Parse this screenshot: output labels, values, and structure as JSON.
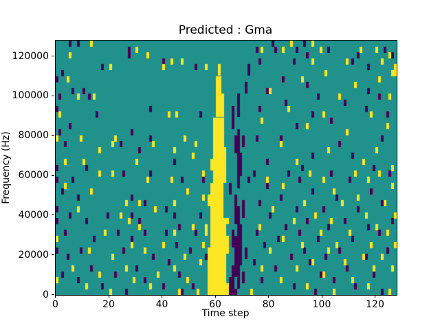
{
  "figure": {
    "background": "#ffffff"
  },
  "chart_data": {
    "type": "heatmap",
    "title": "Predicted : Gma",
    "xlabel": "Time step",
    "ylabel": "Frequency (Hz)",
    "x_ticks": [
      0,
      20,
      40,
      60,
      80,
      100,
      120
    ],
    "y_ticks": [
      0,
      20000,
      40000,
      60000,
      80000,
      100000,
      120000
    ],
    "x_range": [
      0,
      128
    ],
    "y_range": [
      0,
      128000
    ],
    "grid": {
      "cols": 128,
      "rows": 43
    },
    "legend": "none",
    "colormap": {
      "name": "viridis",
      "low": "#440154",
      "mid": "#21918c",
      "high": "#fde725"
    },
    "features": {
      "description": "mostly mid-value background; solid high-value (yellow) vertical band near time step 57-64 rising from 0 Hz to ~115000 Hz; dense low-value (purple) streaks near time steps 65-72; sparse random low/high cells elsewhere",
      "yellow_band_rects": [
        [
          57,
          64,
          0,
          1
        ],
        [
          57,
          63,
          2,
          7
        ],
        [
          58,
          63,
          8,
          12
        ],
        [
          58,
          62,
          13,
          18
        ],
        [
          59,
          63,
          19,
          24
        ],
        [
          59,
          62,
          25,
          29
        ],
        [
          60,
          62,
          30,
          33
        ],
        [
          60,
          61,
          34,
          36
        ],
        [
          61,
          61,
          37,
          38
        ],
        [
          56,
          56,
          10,
          11
        ],
        [
          57,
          57,
          15,
          16
        ],
        [
          58,
          58,
          21,
          22
        ],
        [
          64,
          64,
          7,
          9
        ],
        [
          64,
          64,
          12,
          12
        ]
      ],
      "purple_band_rects": [
        [
          65,
          65,
          0,
          2
        ],
        [
          66,
          67,
          0,
          0
        ],
        [
          66,
          66,
          1,
          4
        ],
        [
          68,
          68,
          1,
          14
        ],
        [
          67,
          67,
          3,
          9
        ],
        [
          69,
          69,
          5,
          11
        ],
        [
          66,
          66,
          8,
          10
        ],
        [
          70,
          70,
          2,
          3
        ],
        [
          67,
          67,
          12,
          16
        ],
        [
          70,
          70,
          13,
          15
        ],
        [
          68,
          68,
          18,
          27
        ],
        [
          69,
          69,
          20,
          23
        ],
        [
          67,
          67,
          24,
          26
        ],
        [
          70,
          70,
          25,
          26
        ],
        [
          66,
          66,
          28,
          31
        ],
        [
          68,
          68,
          30,
          33
        ],
        [
          71,
          71,
          6,
          7
        ],
        [
          71,
          71,
          34,
          35
        ],
        [
          65,
          65,
          17,
          18
        ],
        [
          72,
          72,
          19,
          19
        ],
        [
          72,
          72,
          37,
          38
        ]
      ],
      "purple_cells": [
        [
          5,
          42
        ],
        [
          8,
          42
        ],
        [
          27,
          41
        ],
        [
          27,
          40
        ],
        [
          17,
          38
        ],
        [
          40,
          39
        ],
        [
          2,
          37
        ],
        [
          0,
          36
        ],
        [
          6,
          34
        ],
        [
          10,
          34
        ],
        [
          1,
          33
        ],
        [
          12,
          33
        ],
        [
          0,
          31
        ],
        [
          35,
          31
        ],
        [
          15,
          30
        ],
        [
          5,
          28
        ],
        [
          1,
          27
        ],
        [
          28,
          27
        ],
        [
          35,
          26
        ],
        [
          3,
          25
        ],
        [
          24,
          25
        ],
        [
          0,
          21
        ],
        [
          11,
          21
        ],
        [
          52,
          38
        ],
        [
          54,
          30
        ],
        [
          44,
          22
        ],
        [
          31,
          24
        ],
        [
          25,
          20
        ],
        [
          35,
          20
        ],
        [
          0,
          19
        ],
        [
          6,
          19
        ],
        [
          47,
          19
        ],
        [
          55,
          19
        ],
        [
          2,
          17
        ],
        [
          8,
          16
        ],
        [
          28,
          16
        ],
        [
          33,
          15
        ],
        [
          41,
          14
        ],
        [
          0,
          14
        ],
        [
          5,
          13
        ],
        [
          19,
          13
        ],
        [
          28,
          13
        ],
        [
          44,
          13
        ],
        [
          54,
          13
        ],
        [
          0,
          12
        ],
        [
          11,
          12
        ],
        [
          31,
          12
        ],
        [
          46,
          11
        ],
        [
          3,
          10
        ],
        [
          23,
          10
        ],
        [
          33,
          10
        ],
        [
          41,
          10
        ],
        [
          52,
          10
        ],
        [
          14,
          9
        ],
        [
          28,
          9
        ],
        [
          45,
          8
        ],
        [
          0,
          7
        ],
        [
          9,
          7
        ],
        [
          25,
          7
        ],
        [
          50,
          7
        ],
        [
          56,
          6
        ],
        [
          4,
          6
        ],
        [
          36,
          6
        ],
        [
          42,
          5
        ],
        [
          13,
          4
        ],
        [
          30,
          4
        ],
        [
          2,
          3
        ],
        [
          22,
          3
        ],
        [
          46,
          3
        ],
        [
          8,
          2
        ],
        [
          33,
          2
        ],
        [
          17,
          1
        ],
        [
          40,
          1
        ],
        [
          51,
          1
        ],
        [
          26,
          0
        ],
        [
          47,
          0
        ],
        [
          81,
          42
        ],
        [
          93,
          42
        ],
        [
          75,
          41
        ],
        [
          82,
          41
        ],
        [
          90,
          41
        ],
        [
          102,
          41
        ],
        [
          123,
          41
        ],
        [
          94,
          40
        ],
        [
          113,
          40
        ],
        [
          126,
          40
        ],
        [
          76,
          39
        ],
        [
          89,
          39
        ],
        [
          111,
          39
        ],
        [
          117,
          38
        ],
        [
          85,
          36
        ],
        [
          94,
          35
        ],
        [
          79,
          34
        ],
        [
          98,
          33
        ],
        [
          117,
          34
        ],
        [
          121,
          33
        ],
        [
          86,
          32
        ],
        [
          108,
          32
        ],
        [
          76,
          31
        ],
        [
          96,
          30
        ],
        [
          116,
          31
        ],
        [
          124,
          30
        ],
        [
          103,
          29
        ],
        [
          90,
          28
        ],
        [
          75,
          26
        ],
        [
          84,
          26
        ],
        [
          106,
          25
        ],
        [
          122,
          26
        ],
        [
          96,
          23
        ],
        [
          111,
          23
        ],
        [
          79,
          22
        ],
        [
          92,
          21
        ],
        [
          119,
          21
        ],
        [
          74,
          20
        ],
        [
          87,
          20
        ],
        [
          103,
          20
        ],
        [
          125,
          20
        ],
        [
          91,
          19
        ],
        [
          110,
          19
        ],
        [
          79,
          18
        ],
        [
          96,
          17
        ],
        [
          118,
          17
        ],
        [
          84,
          16
        ],
        [
          105,
          16
        ],
        [
          122,
          15
        ],
        [
          76,
          15
        ],
        [
          90,
          14
        ],
        [
          100,
          14
        ],
        [
          113,
          14
        ],
        [
          80,
          13
        ],
        [
          94,
          12
        ],
        [
          108,
          12
        ],
        [
          126,
          12
        ],
        [
          86,
          11
        ],
        [
          102,
          11
        ],
        [
          117,
          11
        ],
        [
          75,
          10
        ],
        [
          91,
          10
        ],
        [
          121,
          10
        ],
        [
          83,
          9
        ],
        [
          98,
          9
        ],
        [
          111,
          9
        ],
        [
          78,
          8
        ],
        [
          93,
          7
        ],
        [
          106,
          7
        ],
        [
          124,
          7
        ],
        [
          88,
          6
        ],
        [
          101,
          6
        ],
        [
          116,
          6
        ],
        [
          74,
          5
        ],
        [
          95,
          5
        ],
        [
          109,
          4
        ],
        [
          82,
          4
        ],
        [
          99,
          3
        ],
        [
          119,
          3
        ],
        [
          77,
          2
        ],
        [
          104,
          2
        ],
        [
          112,
          1
        ],
        [
          89,
          1
        ],
        [
          97,
          0
        ],
        [
          122,
          0
        ]
      ],
      "yellow_cells": [
        [
          13,
          42
        ],
        [
          30,
          41
        ],
        [
          5,
          40
        ],
        [
          34,
          40
        ],
        [
          43,
          39
        ],
        [
          47,
          39
        ],
        [
          20,
          38
        ],
        [
          40,
          38
        ],
        [
          56,
          38
        ],
        [
          4,
          36
        ],
        [
          8,
          33
        ],
        [
          14,
          33
        ],
        [
          1,
          30
        ],
        [
          0,
          26
        ],
        [
          9,
          26
        ],
        [
          42,
          30
        ],
        [
          45,
          30
        ],
        [
          22,
          26
        ],
        [
          36,
          25
        ],
        [
          48,
          26
        ],
        [
          52,
          25
        ],
        [
          16,
          24
        ],
        [
          44,
          24
        ],
        [
          51,
          23
        ],
        [
          3,
          22
        ],
        [
          10,
          22
        ],
        [
          30,
          22
        ],
        [
          21,
          25
        ],
        [
          16,
          20
        ],
        [
          21,
          20
        ],
        [
          34,
          19
        ],
        [
          43,
          19
        ],
        [
          55,
          20
        ],
        [
          3,
          18
        ],
        [
          13,
          17
        ],
        [
          49,
          17
        ],
        [
          55,
          16
        ],
        [
          26,
          15
        ],
        [
          31,
          15
        ],
        [
          8,
          14
        ],
        [
          37,
          14
        ],
        [
          44,
          15
        ],
        [
          24,
          13
        ],
        [
          27,
          12
        ],
        [
          31,
          11
        ],
        [
          51,
          11
        ],
        [
          18,
          10
        ],
        [
          44,
          10
        ],
        [
          0,
          9
        ],
        [
          28,
          8
        ],
        [
          40,
          8
        ],
        [
          55,
          8
        ],
        [
          12,
          7
        ],
        [
          33,
          7
        ],
        [
          21,
          6
        ],
        [
          48,
          6
        ],
        [
          54,
          5
        ],
        [
          6,
          4
        ],
        [
          26,
          4
        ],
        [
          44,
          4
        ],
        [
          16,
          3
        ],
        [
          38,
          3
        ],
        [
          0,
          2
        ],
        [
          29,
          2
        ],
        [
          49,
          2
        ],
        [
          11,
          1
        ],
        [
          35,
          1
        ],
        [
          20,
          0
        ],
        [
          46,
          0
        ],
        [
          53,
          0
        ],
        [
          88,
          42
        ],
        [
          96,
          42
        ],
        [
          77,
          41
        ],
        [
          85,
          41
        ],
        [
          99,
          41
        ],
        [
          114,
          41
        ],
        [
          120,
          41
        ],
        [
          125,
          40
        ],
        [
          96,
          39
        ],
        [
          109,
          39
        ],
        [
          122,
          39
        ],
        [
          127,
          38
        ],
        [
          101,
          37
        ],
        [
          92,
          36
        ],
        [
          121,
          36
        ],
        [
          126,
          37
        ],
        [
          127,
          37
        ],
        [
          112,
          35
        ],
        [
          80,
          34
        ],
        [
          106,
          33
        ],
        [
          125,
          33
        ],
        [
          87,
          31
        ],
        [
          100,
          30
        ],
        [
          118,
          30
        ],
        [
          77,
          29
        ],
        [
          94,
          28
        ],
        [
          124,
          28
        ],
        [
          109,
          27
        ],
        [
          84,
          25
        ],
        [
          102,
          24
        ],
        [
          120,
          24
        ],
        [
          90,
          22
        ],
        [
          115,
          22
        ],
        [
          126,
          21
        ],
        [
          95,
          20
        ],
        [
          112,
          20
        ],
        [
          121,
          20
        ],
        [
          79,
          19
        ],
        [
          100,
          19
        ],
        [
          117,
          19
        ],
        [
          126,
          18
        ],
        [
          85,
          18
        ],
        [
          104,
          17
        ],
        [
          113,
          16
        ],
        [
          93,
          15
        ],
        [
          123,
          15
        ],
        [
          107,
          15
        ],
        [
          81,
          14
        ],
        [
          97,
          13
        ],
        [
          116,
          13
        ],
        [
          127,
          13
        ],
        [
          89,
          12
        ],
        [
          103,
          12
        ],
        [
          120,
          11
        ],
        [
          76,
          11
        ],
        [
          99,
          10
        ],
        [
          110,
          10
        ],
        [
          124,
          10
        ],
        [
          85,
          9
        ],
        [
          105,
          8
        ],
        [
          118,
          8
        ],
        [
          127,
          8
        ],
        [
          92,
          8
        ],
        [
          80,
          7
        ],
        [
          102,
          7
        ],
        [
          115,
          6
        ],
        [
          122,
          6
        ],
        [
          96,
          5
        ],
        [
          108,
          5
        ],
        [
          77,
          4
        ],
        [
          90,
          4
        ],
        [
          119,
          4
        ],
        [
          126,
          4
        ],
        [
          100,
          3
        ],
        [
          84,
          2
        ],
        [
          111,
          2
        ],
        [
          117,
          1
        ],
        [
          94,
          1
        ],
        [
          125,
          0
        ],
        [
          104,
          0
        ],
        [
          73,
          0
        ]
      ]
    }
  }
}
